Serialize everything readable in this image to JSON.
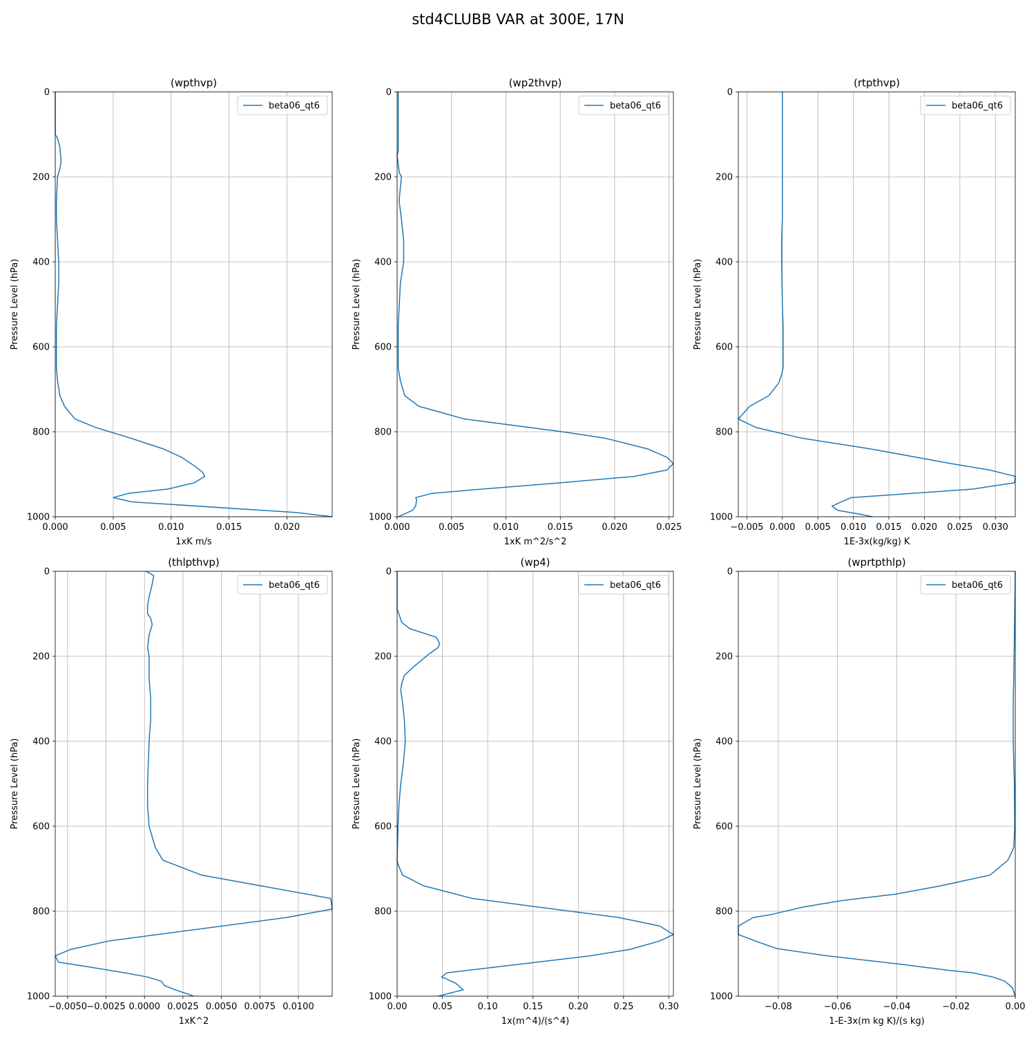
{
  "figure": {
    "title": "std4CLUBB VAR at 300E, 17N"
  },
  "chart_data": [
    {
      "type": "line",
      "title": "(wpthvp)",
      "xlabel": "1xK m/s",
      "ylabel": "Pressure Level (hPa)",
      "xlim": [
        0.0,
        0.0239
      ],
      "ylim": [
        1000,
        0
      ],
      "xticks": [
        "0.000",
        "0.005",
        "0.010",
        "0.015",
        "0.020"
      ],
      "yticks": [
        "0",
        "200",
        "400",
        "600",
        "800",
        "1000"
      ],
      "grid": true,
      "legend": "upper right",
      "series": [
        {
          "name": "beta06_qt6",
          "color": "#1f77b4",
          "x": [
            0.0,
            0.0,
            0.0002,
            0.0004,
            0.0005,
            0.0004,
            0.0002,
            0.0001,
            0.0001,
            0.0002,
            0.0003,
            0.0003,
            0.0002,
            0.0001,
            0.0001,
            0.0001,
            0.0002,
            0.0004,
            0.0008,
            0.0017,
            0.0035,
            0.0065,
            0.0093,
            0.0109,
            0.012,
            0.0127,
            0.0129,
            0.012,
            0.0097,
            0.0063,
            0.005,
            0.0066,
            0.0208,
            0.0239
          ],
          "y": [
            0,
            100,
            110,
            130,
            165,
            180,
            200,
            250,
            300,
            350,
            400,
            450,
            500,
            550,
            600,
            650,
            680,
            715,
            740,
            770,
            790,
            815,
            840,
            860,
            880,
            895,
            905,
            920,
            935,
            945,
            955,
            965,
            990,
            1000
          ]
        }
      ]
    },
    {
      "type": "line",
      "title": "(wp2thvp)",
      "xlabel": "1xK m^2/s^2",
      "ylabel": "Pressure Level (hPa)",
      "xlim": [
        0.0,
        0.0254
      ],
      "ylim": [
        1000,
        0
      ],
      "xticks": [
        "0.000",
        "0.005",
        "0.010",
        "0.015",
        "0.020",
        "0.025"
      ],
      "yticks": [
        "0",
        "200",
        "400",
        "600",
        "800",
        "1000"
      ],
      "grid": true,
      "legend": "upper right",
      "series": [
        {
          "name": "beta06_qt6",
          "color": "#1f77b4",
          "x": [
            0.0001,
            0.0001,
            0.0001,
            0.0,
            0.0002,
            0.0004,
            0.0002,
            0.0002,
            0.0004,
            0.0006,
            0.0006,
            0.0003,
            0.0002,
            0.0001,
            0.0001,
            0.0001,
            0.0003,
            0.0007,
            0.002,
            0.0062,
            0.0152,
            0.0191,
            0.023,
            0.0248,
            0.0254,
            0.0248,
            0.0218,
            0.0151,
            0.0078,
            0.0032,
            0.0017,
            0.0018,
            0.0017,
            0.0014,
            0.0001
          ],
          "y": [
            0,
            100,
            140,
            150,
            190,
            200,
            250,
            260,
            300,
            350,
            400,
            450,
            500,
            550,
            600,
            650,
            680,
            715,
            740,
            770,
            800,
            815,
            840,
            860,
            875,
            890,
            905,
            920,
            935,
            945,
            955,
            960,
            975,
            985,
            1000
          ]
        }
      ]
    },
    {
      "type": "line",
      "title": "(rtpthvp)",
      "xlabel": "1E-3x(kg/kg) K",
      "ylabel": "Pressure Level (hPa)",
      "xlim": [
        -0.0062,
        0.0328
      ],
      "ylim": [
        1000,
        0
      ],
      "xticks": [
        "−0.005",
        "0.000",
        "0.005",
        "0.010",
        "0.015",
        "0.020",
        "0.025",
        "0.030"
      ],
      "yticks": [
        "0",
        "200",
        "400",
        "600",
        "800",
        "1000"
      ],
      "grid": true,
      "legend": "upper right",
      "series": [
        {
          "name": "beta06_qt6",
          "color": "#1f77b4",
          "x": [
            0.0,
            0.0,
            0.0,
            0.0,
            -0.0001,
            -0.0001,
            0.0,
            0.0001,
            0.0001,
            0.0001,
            -0.0001,
            -0.0005,
            -0.0019,
            -0.0046,
            -0.0062,
            -0.0037,
            0.0027,
            0.0123,
            0.0238,
            0.0292,
            0.0328,
            0.0327,
            0.0268,
            0.0097,
            0.0083,
            0.007,
            0.0078,
            0.0112,
            0.0127
          ],
          "y": [
            0,
            100,
            200,
            300,
            350,
            400,
            500,
            550,
            600,
            650,
            665,
            685,
            715,
            740,
            770,
            790,
            815,
            840,
            875,
            890,
            905,
            920,
            935,
            955,
            965,
            975,
            985,
            995,
            1000
          ]
        }
      ]
    },
    {
      "type": "line",
      "title": "(thlpthvp)",
      "xlabel": "1xK^2",
      "ylabel": "Pressure Level (hPa)",
      "xlim": [
        -0.0058,
        0.0122
      ],
      "ylim": [
        1000,
        0
      ],
      "xticks": [
        "−0.0050",
        "−0.0025",
        "0.0000",
        "0.0025",
        "0.0050",
        "0.0075",
        "0.0100"
      ],
      "yticks": [
        "0",
        "200",
        "400",
        "600",
        "800",
        "1000"
      ],
      "grid": true,
      "legend": "upper right",
      "series": [
        {
          "name": "beta06_qt6",
          "color": "#1f77b4",
          "x": [
            0.0001,
            0.0006,
            0.0005,
            0.0003,
            0.0002,
            0.0002,
            0.0004,
            0.0005,
            0.0003,
            0.0002,
            0.0003,
            0.0003,
            0.0004,
            0.0004,
            0.0003,
            0.0002,
            0.0002,
            0.0003,
            0.0007,
            0.0012,
            0.0037,
            0.0121,
            0.0122,
            0.0092,
            -0.0023,
            -0.0048,
            -0.0058,
            -0.0056,
            -0.0038,
            -0.0013,
            0.0002,
            0.0011,
            0.0013,
            0.002,
            0.0032
          ],
          "y": [
            0,
            10,
            30,
            60,
            80,
            100,
            110,
            125,
            150,
            180,
            200,
            250,
            300,
            350,
            400,
            500,
            550,
            600,
            650,
            680,
            715,
            770,
            795,
            815,
            870,
            890,
            905,
            920,
            930,
            945,
            955,
            965,
            975,
            985,
            1000
          ]
        }
      ]
    },
    {
      "type": "line",
      "title": "(wp4)",
      "xlabel": "1x(m^4)/(s^4)",
      "ylabel": "Pressure Level (hPa)",
      "xlim": [
        0.0,
        0.305
      ],
      "ylim": [
        1000,
        0
      ],
      "xticks": [
        "0.00",
        "0.05",
        "0.10",
        "0.15",
        "0.20",
        "0.25",
        "0.30"
      ],
      "yticks": [
        "0",
        "200",
        "400",
        "600",
        "800",
        "1000"
      ],
      "grid": true,
      "legend": "upper right",
      "series": [
        {
          "name": "beta06_qt6",
          "color": "#1f77b4",
          "x": [
            0.0,
            0.0,
            0.002,
            0.005,
            0.014,
            0.043,
            0.047,
            0.045,
            0.035,
            0.018,
            0.008,
            0.005,
            0.004,
            0.006,
            0.008,
            0.009,
            0.007,
            0.004,
            0.002,
            0.001,
            0.0,
            0.001,
            0.006,
            0.029,
            0.083,
            0.245,
            0.29,
            0.305,
            0.29,
            0.257,
            0.213,
            0.095,
            0.055,
            0.049,
            0.055,
            0.065,
            0.073,
            0.045
          ],
          "y": [
            0,
            90,
            100,
            120,
            135,
            155,
            170,
            180,
            195,
            225,
            245,
            265,
            280,
            310,
            350,
            400,
            450,
            500,
            550,
            600,
            680,
            690,
            715,
            740,
            770,
            815,
            835,
            855,
            870,
            890,
            905,
            935,
            945,
            955,
            960,
            970,
            985,
            1000
          ]
        }
      ]
    },
    {
      "type": "line",
      "title": "(wprtpthlp)",
      "xlabel": "1-E-3x(m kg K)/(s kg)",
      "ylabel": "Pressure Level (hPa)",
      "xlim": [
        -0.0935,
        0.0
      ],
      "ylim": [
        1000,
        0
      ],
      "xticks": [
        "−0.08",
        "−0.06",
        "−0.04",
        "−0.02",
        "0.00"
      ],
      "yticks": [
        "0",
        "200",
        "400",
        "600",
        "800",
        "1000"
      ],
      "grid": true,
      "legend": "upper right",
      "series": [
        {
          "name": "beta06_qt6",
          "color": "#1f77b4",
          "x": [
            0.0,
            -0.0002,
            -0.0005,
            -0.0007,
            -0.0007,
            -0.0005,
            -0.0003,
            -0.0002,
            -0.0005,
            -0.0025,
            -0.0085,
            -0.025,
            -0.0405,
            -0.0585,
            -0.0715,
            -0.0825,
            -0.0885,
            -0.0935,
            -0.0935,
            -0.087,
            -0.0805,
            -0.0635,
            -0.0385,
            -0.0215,
            -0.0145,
            -0.0075,
            -0.0035,
            -0.001,
            0.0
          ],
          "y": [
            0,
            100,
            250,
            300,
            400,
            450,
            500,
            600,
            650,
            680,
            715,
            740,
            760,
            775,
            790,
            808,
            815,
            835,
            855,
            872,
            888,
            905,
            925,
            940,
            945,
            955,
            965,
            980,
            1000
          ]
        }
      ]
    }
  ]
}
